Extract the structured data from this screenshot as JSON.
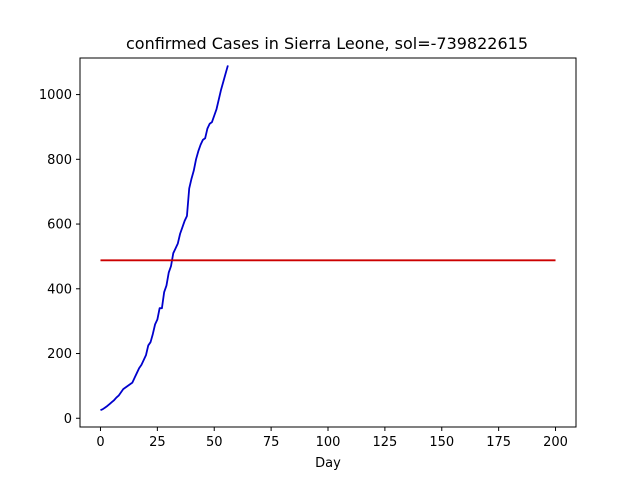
{
  "chart_data": {
    "type": "line",
    "title": "confirmed Cases in Sierra Leone, sol=-739822615",
    "xlabel": "Day",
    "ylabel": "",
    "xlim": [
      -9,
      209
    ],
    "ylim": [
      -27,
      1113
    ],
    "xticks": [
      0,
      25,
      50,
      75,
      100,
      125,
      150,
      175,
      200
    ],
    "yticks": [
      0,
      200,
      400,
      600,
      800,
      1000
    ],
    "grid": false,
    "series": [
      {
        "color": "#0000cd",
        "x": [
          0,
          1,
          2,
          3,
          4,
          5,
          6,
          7,
          8,
          9,
          10,
          11,
          12,
          13,
          14,
          15,
          16,
          17,
          18,
          19,
          20,
          21,
          22,
          23,
          24,
          25,
          26,
          27,
          28,
          29,
          30,
          31,
          32,
          33,
          34,
          35,
          36,
          37,
          38,
          39,
          40,
          41,
          42,
          43,
          44,
          45,
          46,
          47,
          48,
          49,
          50,
          51,
          52,
          53,
          54,
          55,
          56
        ],
        "values": [
          25,
          28,
          33,
          38,
          44,
          50,
          56,
          64,
          70,
          80,
          90,
          95,
          100,
          105,
          110,
          125,
          140,
          155,
          165,
          180,
          195,
          225,
          235,
          260,
          290,
          305,
          340,
          340,
          390,
          410,
          450,
          470,
          510,
          525,
          540,
          570,
          590,
          610,
          625,
          710,
          740,
          765,
          800,
          825,
          845,
          860,
          865,
          895,
          910,
          915,
          935,
          955,
          985,
          1015,
          1040,
          1065,
          1090
        ]
      },
      {
        "color": "#cc0000",
        "x": [
          0,
          200
        ],
        "values": [
          488,
          488
        ]
      }
    ]
  }
}
